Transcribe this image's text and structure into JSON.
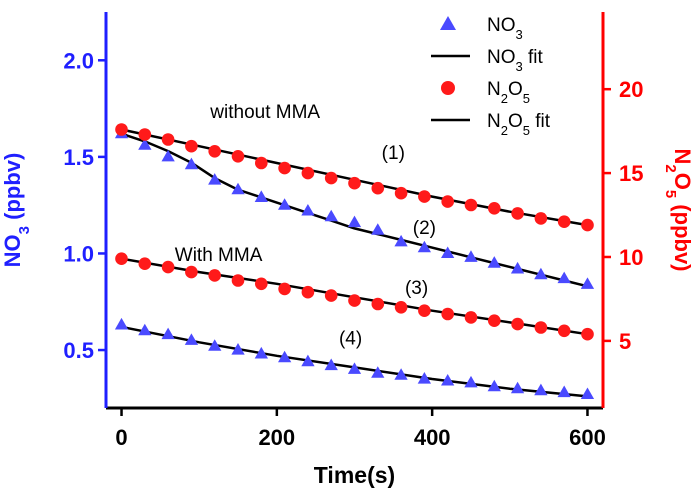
{
  "chart_data": {
    "type": "scatter",
    "xlabel": "Time(s)",
    "ylabel_left": {
      "main": "NO",
      "sub": "3",
      "suffix": " (ppbv)",
      "color": "#1f1fff"
    },
    "ylabel_right": {
      "main1": "N",
      "sub1": "2",
      "main2": "O",
      "sub2": "5",
      "suffix": " (ppbv)",
      "color": "#ff0000"
    },
    "xlim": [
      -20,
      620
    ],
    "ylim_left": [
      0.2,
      2.25
    ],
    "ylim_right": [
      1.0,
      24.6
    ],
    "xticks": [
      0,
      200,
      400,
      600
    ],
    "yticks_left": [
      0.5,
      1.0,
      1.5,
      2.0
    ],
    "yticks_right": [
      5,
      10,
      15,
      20
    ],
    "ytick_labels_left": [
      "0.5",
      "1.0",
      "1.5",
      "2.0"
    ],
    "ytick_labels_right": [
      "5",
      "10",
      "15",
      "20"
    ],
    "colors": {
      "no3": "#4a4aff",
      "n2o5": "#ff1a1a",
      "fit": "#000000",
      "left_axis": "#1f1fff",
      "right_axis": "#ff0000",
      "bottom_axis": "#000000"
    },
    "legend": {
      "placement": "top-right",
      "entries": [
        {
          "marker": "triangle",
          "main": "NO",
          "sub": "3",
          "rest": ""
        },
        {
          "marker": "line",
          "main": "NO",
          "sub": "3",
          "rest": " fit"
        },
        {
          "marker": "circle",
          "main": "N",
          "sub": "2",
          "main2": "O",
          "sub2": "5",
          "rest": ""
        },
        {
          "marker": "line",
          "main": "N",
          "sub": "2",
          "main2": "O",
          "sub2": "5",
          "rest": " fit"
        }
      ]
    },
    "annotations": [
      {
        "text": "without MMA",
        "x": 185,
        "y": 1.7,
        "axis": "left"
      },
      {
        "text": "With MMA",
        "x": 125,
        "y": 0.96,
        "axis": "left"
      },
      {
        "text": "(1)",
        "x": 350,
        "y": 1.49,
        "axis": "left"
      },
      {
        "text": "(2)",
        "x": 390,
        "y": 1.1,
        "axis": "left"
      },
      {
        "text": "(3)",
        "x": 380,
        "y": 0.79,
        "axis": "left"
      },
      {
        "text": "(4)",
        "x": 295,
        "y": 0.53,
        "axis": "left"
      }
    ],
    "series": [
      {
        "name": "NO3",
        "label": "(2)",
        "axis": "left",
        "marker": "triangle",
        "x": [
          0,
          30,
          60,
          90,
          120,
          150,
          180,
          210,
          240,
          270,
          300,
          330,
          360,
          390,
          420,
          450,
          480,
          510,
          540,
          570,
          600
        ],
        "y": [
          1.62,
          1.56,
          1.5,
          1.46,
          1.38,
          1.33,
          1.29,
          1.25,
          1.22,
          1.19,
          1.16,
          1.12,
          1.06,
          1.03,
          1.0,
          0.98,
          0.95,
          0.92,
          0.89,
          0.87,
          0.84
        ],
        "fit": [
          [
            0,
            1.62
          ],
          [
            30,
            1.58
          ],
          [
            60,
            1.53
          ],
          [
            90,
            1.47
          ],
          [
            120,
            1.39
          ],
          [
            150,
            1.33
          ],
          [
            180,
            1.29
          ],
          [
            210,
            1.25
          ],
          [
            240,
            1.21
          ],
          [
            270,
            1.17
          ],
          [
            300,
            1.13
          ],
          [
            330,
            1.1
          ],
          [
            360,
            1.07
          ],
          [
            390,
            1.04
          ],
          [
            420,
            1.01
          ],
          [
            450,
            0.98
          ],
          [
            480,
            0.95
          ],
          [
            510,
            0.92
          ],
          [
            540,
            0.89
          ],
          [
            570,
            0.86
          ],
          [
            600,
            0.83
          ]
        ]
      },
      {
        "name": "N2O5",
        "label": "(1)",
        "axis": "right",
        "marker": "circle",
        "x": [
          0,
          30,
          60,
          90,
          120,
          150,
          180,
          210,
          240,
          270,
          300,
          330,
          360,
          390,
          420,
          450,
          480,
          510,
          540,
          570,
          600
        ],
        "y": [
          17.6,
          17.3,
          17.0,
          16.6,
          16.3,
          16.0,
          15.6,
          15.3,
          15.0,
          14.7,
          14.4,
          14.1,
          13.8,
          13.6,
          13.3,
          13.1,
          12.9,
          12.6,
          12.3,
          12.1,
          11.9
        ],
        "fit": [
          [
            0,
            17.6
          ],
          [
            100,
            16.6
          ],
          [
            200,
            15.6
          ],
          [
            300,
            14.6
          ],
          [
            400,
            13.6
          ],
          [
            500,
            12.7
          ],
          [
            600,
            11.9
          ]
        ]
      },
      {
        "name": "N2O5",
        "label": "(3)",
        "axis": "right",
        "marker": "circle",
        "x": [
          0,
          30,
          60,
          90,
          120,
          150,
          180,
          210,
          240,
          270,
          300,
          330,
          360,
          390,
          420,
          450,
          480,
          510,
          540,
          570,
          600
        ],
        "y": [
          9.9,
          9.6,
          9.4,
          9.1,
          8.9,
          8.6,
          8.4,
          8.1,
          7.9,
          7.7,
          7.4,
          7.2,
          7.0,
          6.8,
          6.6,
          6.4,
          6.2,
          6.0,
          5.8,
          5.6,
          5.4
        ],
        "fit": [
          [
            0,
            9.9
          ],
          [
            100,
            9.1
          ],
          [
            200,
            8.4
          ],
          [
            300,
            7.6
          ],
          [
            400,
            6.8
          ],
          [
            500,
            6.1
          ],
          [
            600,
            5.4
          ]
        ]
      },
      {
        "name": "NO3",
        "label": "(4)",
        "axis": "left",
        "marker": "triangle",
        "x": [
          0,
          30,
          60,
          90,
          120,
          150,
          180,
          210,
          240,
          270,
          300,
          330,
          360,
          390,
          420,
          450,
          480,
          510,
          540,
          570,
          600
        ],
        "y": [
          0.63,
          0.6,
          0.58,
          0.55,
          0.52,
          0.5,
          0.48,
          0.46,
          0.44,
          0.42,
          0.4,
          0.38,
          0.37,
          0.35,
          0.34,
          0.33,
          0.31,
          0.3,
          0.29,
          0.28,
          0.27
        ],
        "fit": [
          [
            0,
            0.62
          ],
          [
            100,
            0.54
          ],
          [
            200,
            0.47
          ],
          [
            300,
            0.41
          ],
          [
            400,
            0.35
          ],
          [
            500,
            0.3
          ],
          [
            600,
            0.26
          ]
        ]
      }
    ]
  }
}
